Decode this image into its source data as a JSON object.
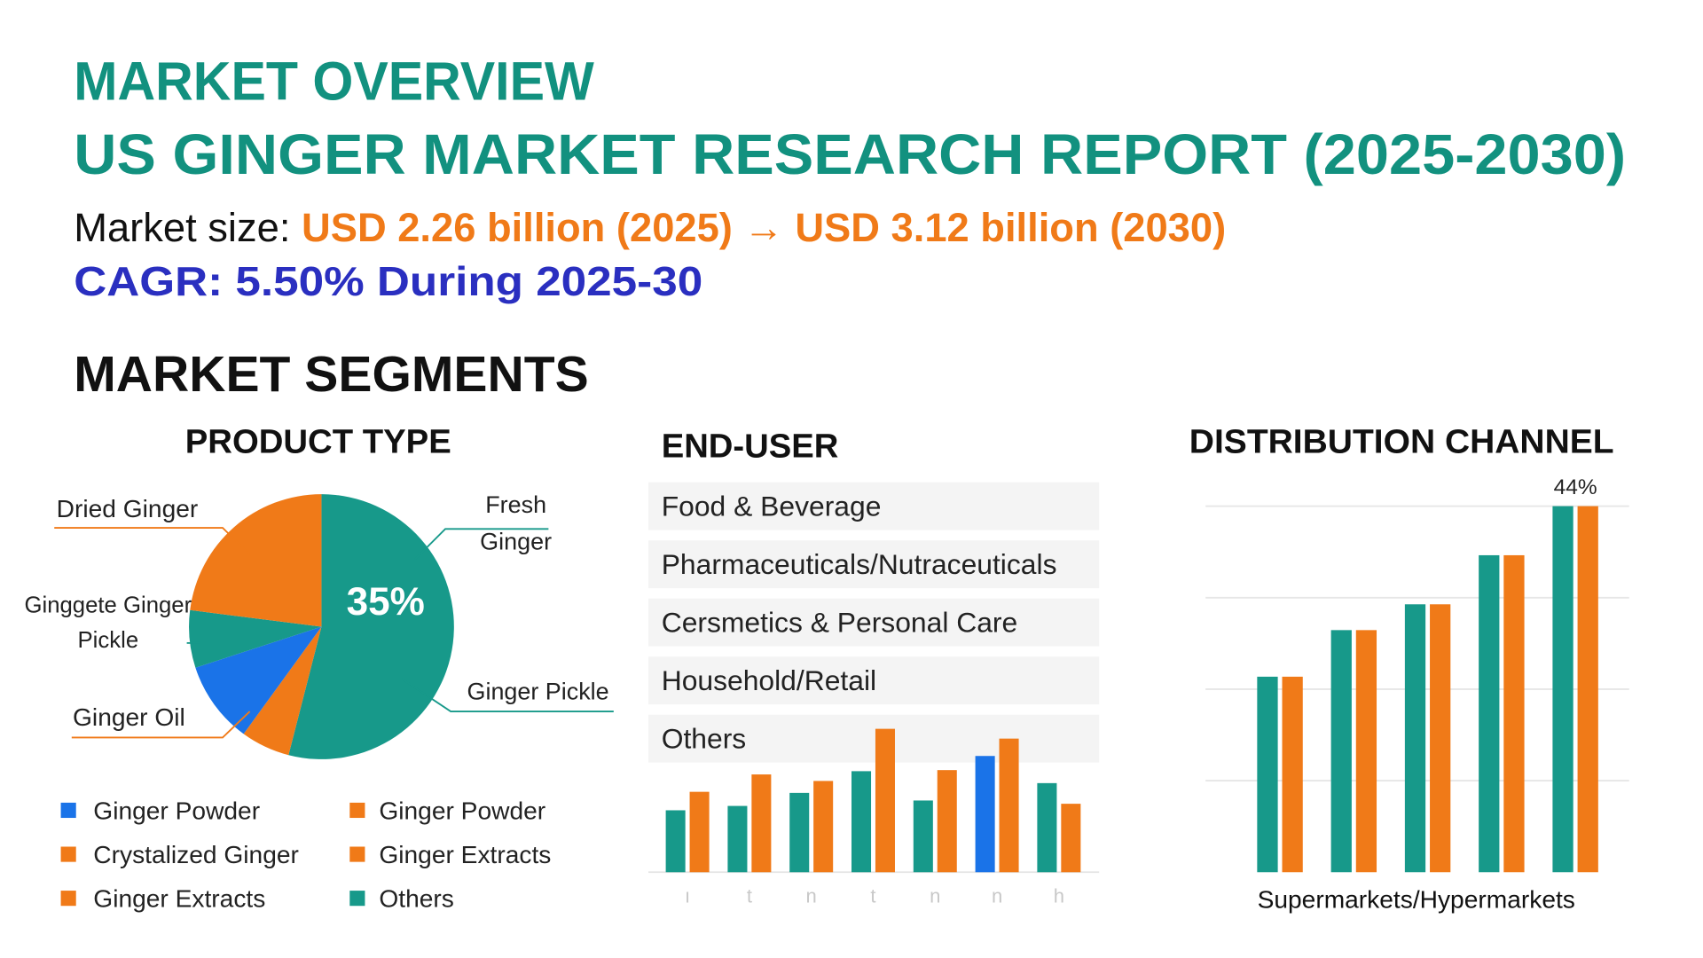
{
  "header": {
    "title": "MARKET OVERVIEW",
    "subtitle": "US GINGER MARKET RESEARCH REPORT (2025-2030)",
    "market_size_label": "Market size:",
    "market_size": "USD 2.26 billion (2025) → USD 3.12 billion (2030)",
    "cagr": "CAGR: 5.50% During 2025-30",
    "segments_title": "MARKET SEGMENTS"
  },
  "chart_data": [
    {
      "type": "pie",
      "title": "PRODUCT TYPE",
      "categories": [
        "Fresh Ginger",
        null,
        "Ginger Oil",
        "Ginggete Ginger Pickle",
        "Dried Ginger"
      ],
      "values": [
        54,
        6,
        10,
        7,
        23
      ],
      "colors": [
        "#17998a",
        "#f07a18",
        "#1a73e8",
        "#17998a",
        "#f07a18"
      ],
      "annotations": [
        "35%",
        "Ginger Pickle"
      ],
      "legend": [
        {
          "label": "Ginger Powder",
          "color": "#1a73e8"
        },
        {
          "label": "Ginger Powder",
          "color": "#f07a18"
        },
        {
          "label": "Crystalized Ginger",
          "color": "#f07a18"
        },
        {
          "label": "Ginger Extracts",
          "color": "#f07a18"
        },
        {
          "label": "Ginger Extracts",
          "color": "#f07a18"
        },
        {
          "label": "Others",
          "color": "#17998a"
        }
      ]
    },
    {
      "type": "bar",
      "title": "END-USER",
      "items": [
        "Food & Beverage",
        "Pharmaceuticals/Nutraceuticals",
        "Cersmetics & Personal Care",
        "Household/Retail",
        "Others"
      ],
      "categories": [
        "ı",
        "t",
        "n",
        "t",
        "n",
        "n",
        "h"
      ],
      "series": [
        {
          "color": "#17998a",
          "colors": [
            "#17998a",
            "#17998a",
            "#17998a",
            "#17998a",
            "#17998a",
            "#1a73e8",
            "#17998a"
          ],
          "values": [
            57,
            61,
            73,
            93,
            66,
            107,
            82
          ]
        },
        {
          "color": "#f07a18",
          "values": [
            74,
            90,
            84,
            132,
            94,
            123,
            63
          ]
        }
      ]
    },
    {
      "type": "bar",
      "title": "DISTRIBUTION CHANNEL",
      "x_label": "Supermarkets/Hypermarkets",
      "categories": [
        null,
        null,
        null,
        null,
        null
      ],
      "series": [
        {
          "color": "#17998a",
          "values": [
            23.5,
            29.1,
            32.2,
            38.1,
            44
          ],
          "value_labels": [
            null,
            null,
            null,
            null,
            "44%"
          ]
        },
        {
          "color": "#f07a18",
          "values": [
            23.5,
            29.1,
            32.2,
            38.1,
            44
          ]
        }
      ],
      "ylim": [
        0,
        44
      ],
      "grid_lines": [
        11,
        22,
        33,
        44
      ]
    }
  ]
}
